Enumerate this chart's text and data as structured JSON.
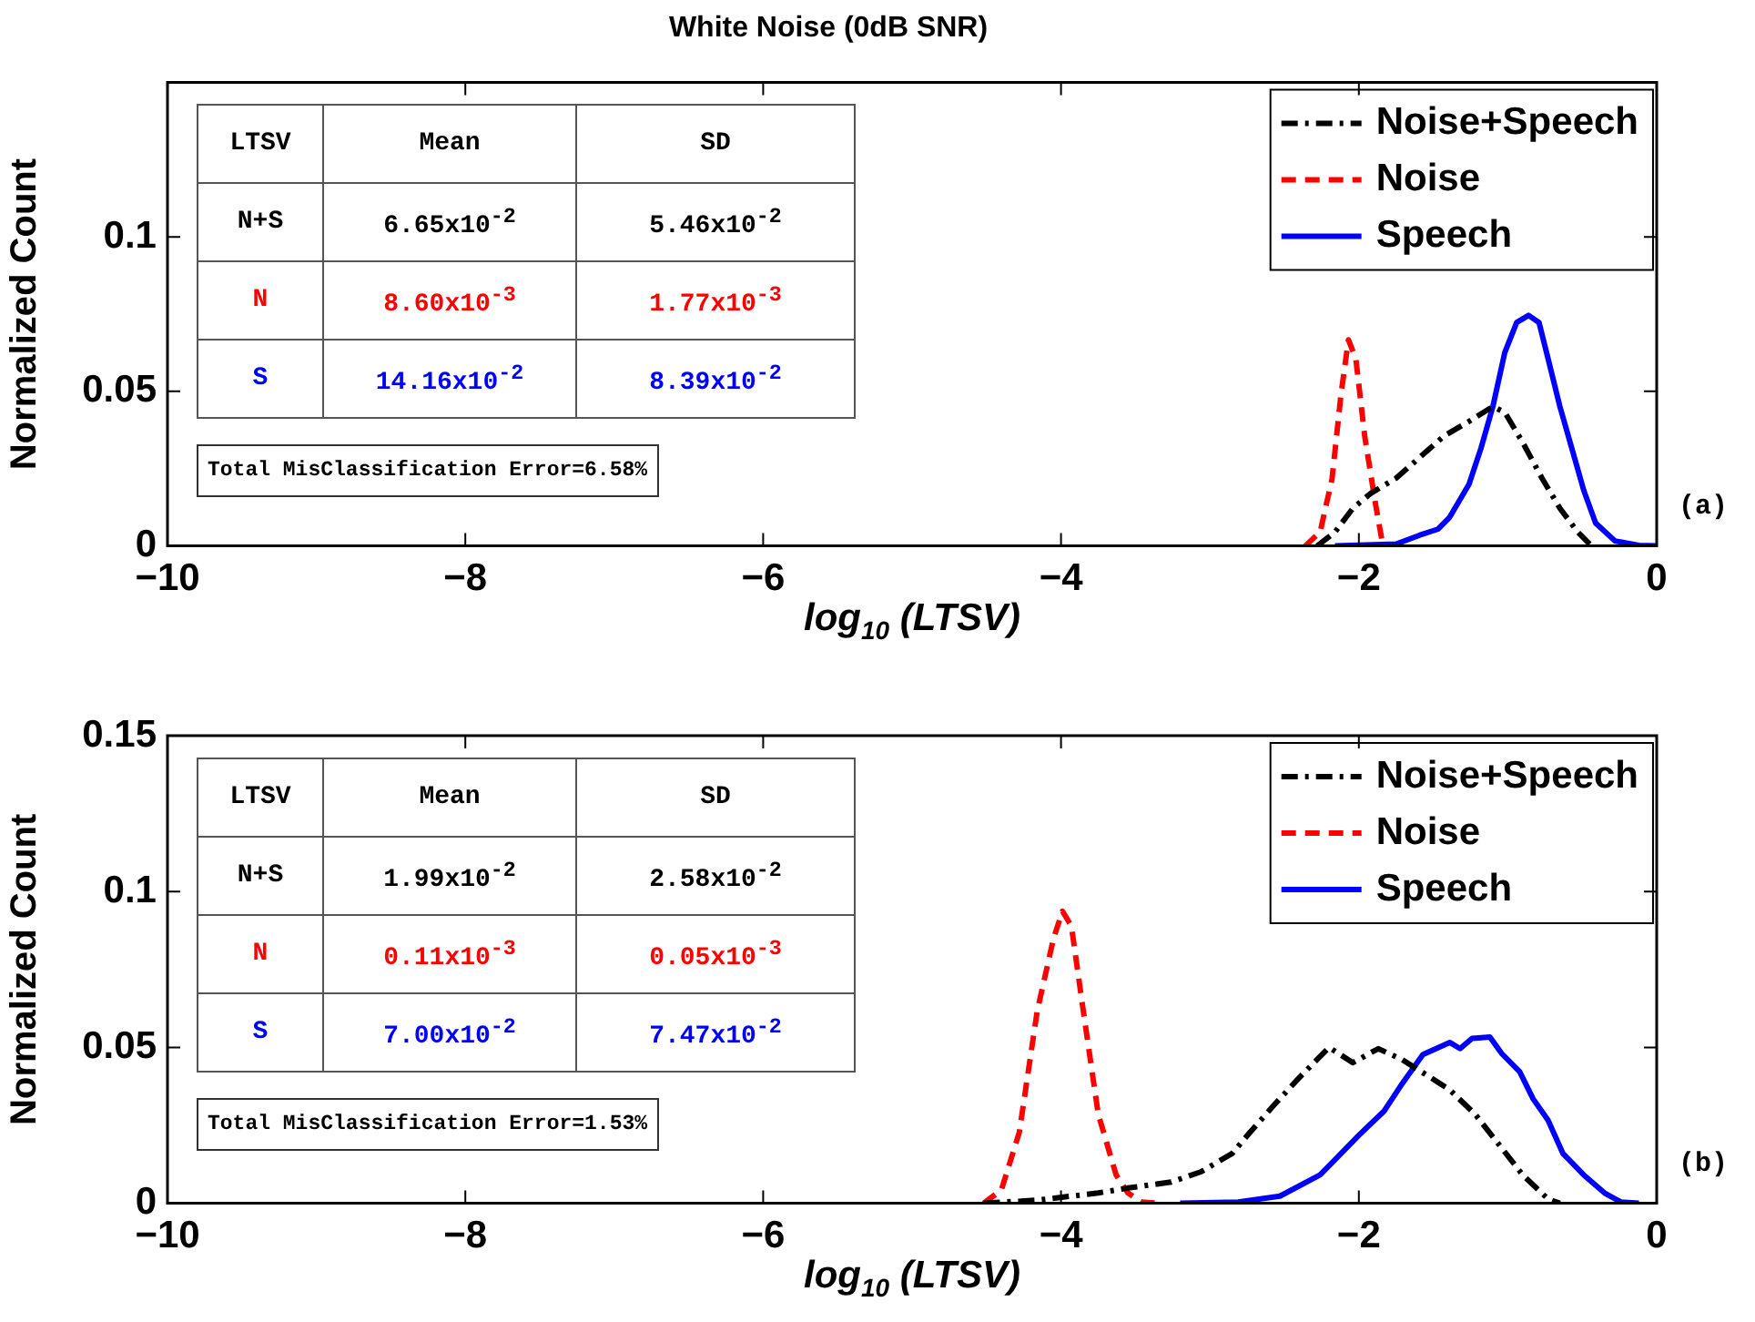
{
  "chart_data": [
    {
      "type": "line",
      "title": "White Noise (0dB SNR)",
      "xlabel": "log$_{10}$ (LTSV)",
      "ylabel": "Normalized Count",
      "xlim": [
        -10,
        0
      ],
      "xticks": [
        -10,
        -8,
        -6,
        -4,
        -2,
        0
      ],
      "ylim": [
        0,
        0.15
      ],
      "yticks": [
        0,
        0.05,
        0.1
      ],
      "grid": false,
      "legend": "top right",
      "marker": "none",
      "series": [
        {
          "name": "Noise+Speech",
          "color": "#000000",
          "line_style": "dashdot",
          "x": [
            -2.28,
            -2.16,
            -2.04,
            -1.92,
            -1.75,
            -1.59,
            -1.43,
            -1.26,
            -1.1,
            -1.02,
            -0.9,
            -0.77,
            -0.65,
            -0.53,
            -0.45
          ],
          "values": [
            0,
            0.0045,
            0.0122,
            0.017,
            0.0219,
            0.0287,
            0.0355,
            0.0403,
            0.0451,
            0.0432,
            0.0335,
            0.0219,
            0.0122,
            0.0045,
            0.0006
          ]
        },
        {
          "name": "Noise",
          "color": "#ff0000",
          "line_style": "dashed",
          "x": [
            -2.36,
            -2.26,
            -2.18,
            -2.12,
            -2.07,
            -2.02,
            -1.96,
            -1.89,
            -1.84
          ],
          "values": [
            0,
            0.0045,
            0.0217,
            0.049,
            0.0667,
            0.0605,
            0.0353,
            0.0141,
            0.0005
          ]
        },
        {
          "name": "Speech",
          "color": "#0000ff",
          "line_style": "solid",
          "x": [
            -2.16,
            -1.75,
            -1.59,
            -1.47,
            -1.39,
            -1.26,
            -1.18,
            -1.1,
            -1.02,
            -0.94,
            -0.86,
            -0.79,
            -0.73,
            -0.65,
            -0.57,
            -0.49,
            -0.41,
            -0.28,
            -0.12,
            0
          ],
          "values": [
            0,
            0.0006,
            0.0035,
            0.0054,
            0.0093,
            0.02,
            0.0316,
            0.0451,
            0.0626,
            0.0723,
            0.0746,
            0.0723,
            0.0607,
            0.0451,
            0.0316,
            0.018,
            0.0074,
            0.0016,
            0.0002,
            0
          ]
        }
      ],
      "annotations": [
        "LTSV",
        "Mean",
        "SD",
        "N+S",
        "6.65x10$^{-2}$",
        "5.46x10$^{-2}$",
        "N",
        "8.60x10$^{-3}$",
        "1.77x10$^{-3}$",
        "S",
        "14.16x10$^{-2}$",
        "8.39x10$^{-2}$",
        "Total MisClassification Error=6.58%",
        "(a)"
      ]
    },
    {
      "type": "line",
      "xlabel": "log$_{10}$ (LTSV)",
      "ylabel": "Normalized Count",
      "xlim": [
        -10,
        0
      ],
      "xticks": [
        -10,
        -8,
        -6,
        -4,
        -2,
        0
      ],
      "ylim": [
        0,
        0.15
      ],
      "yticks": [
        0,
        0.05,
        0.1,
        0.15
      ],
      "grid": false,
      "legend": "top right",
      "marker": "none",
      "series": [
        {
          "name": "Noise+Speech",
          "color": "#000000",
          "line_style": "dashdot",
          "x": [
            -4.52,
            -4.16,
            -3.75,
            -3.55,
            -3.26,
            -3.06,
            -2.85,
            -2.73,
            -2.57,
            -2.4,
            -2.2,
            -2.04,
            -1.87,
            -1.71,
            -1.55,
            -1.39,
            -1.22,
            -1.06,
            -0.9,
            -0.73,
            -0.65
          ],
          "values": [
            0,
            0.001,
            0.0033,
            0.0049,
            0.0068,
            0.0101,
            0.016,
            0.0228,
            0.0315,
            0.0403,
            0.05,
            0.0451,
            0.0496,
            0.0461,
            0.0413,
            0.0364,
            0.0286,
            0.0189,
            0.0091,
            0.0014,
            0
          ]
        },
        {
          "name": "Noise",
          "color": "#ff0000",
          "line_style": "dashed",
          "x": [
            -4.52,
            -4.4,
            -4.28,
            -4.16,
            -4.05,
            -3.99,
            -3.93,
            -3.85,
            -3.75,
            -3.63,
            -3.55,
            -3.46,
            -3.34
          ],
          "values": [
            0,
            0.0043,
            0.0228,
            0.0616,
            0.085,
            0.0937,
            0.0889,
            0.0616,
            0.0286,
            0.0091,
            0.0033,
            0.0004,
            0
          ]
        },
        {
          "name": "Speech",
          "color": "#0000ff",
          "line_style": "solid",
          "x": [
            -3.2,
            -2.81,
            -2.53,
            -2.26,
            -2.0,
            -1.83,
            -1.71,
            -1.57,
            -1.39,
            -1.32,
            -1.24,
            -1.12,
            -1.04,
            -0.92,
            -0.83,
            -0.73,
            -0.63,
            -0.49,
            -0.35,
            -0.24,
            -0.12
          ],
          "values": [
            0,
            0.0004,
            0.0023,
            0.0091,
            0.0218,
            0.0296,
            0.0383,
            0.0477,
            0.0516,
            0.0496,
            0.0529,
            0.0533,
            0.048,
            0.0422,
            0.0335,
            0.0267,
            0.016,
            0.0091,
            0.0033,
            0.0004,
            0
          ]
        }
      ],
      "annotations": [
        "LTSV",
        "Mean",
        "SD",
        "N+S",
        "1.99x10$^{-2}$",
        "2.58x10$^{-2}$",
        "N",
        "0.11x10$^{-3}$",
        "0.05x10$^{-3}$",
        "S",
        "7.00x10$^{-2}$",
        "7.47x10$^{-2}$",
        "Total MisClassification Error=1.53%",
        "(b)"
      ]
    }
  ]
}
